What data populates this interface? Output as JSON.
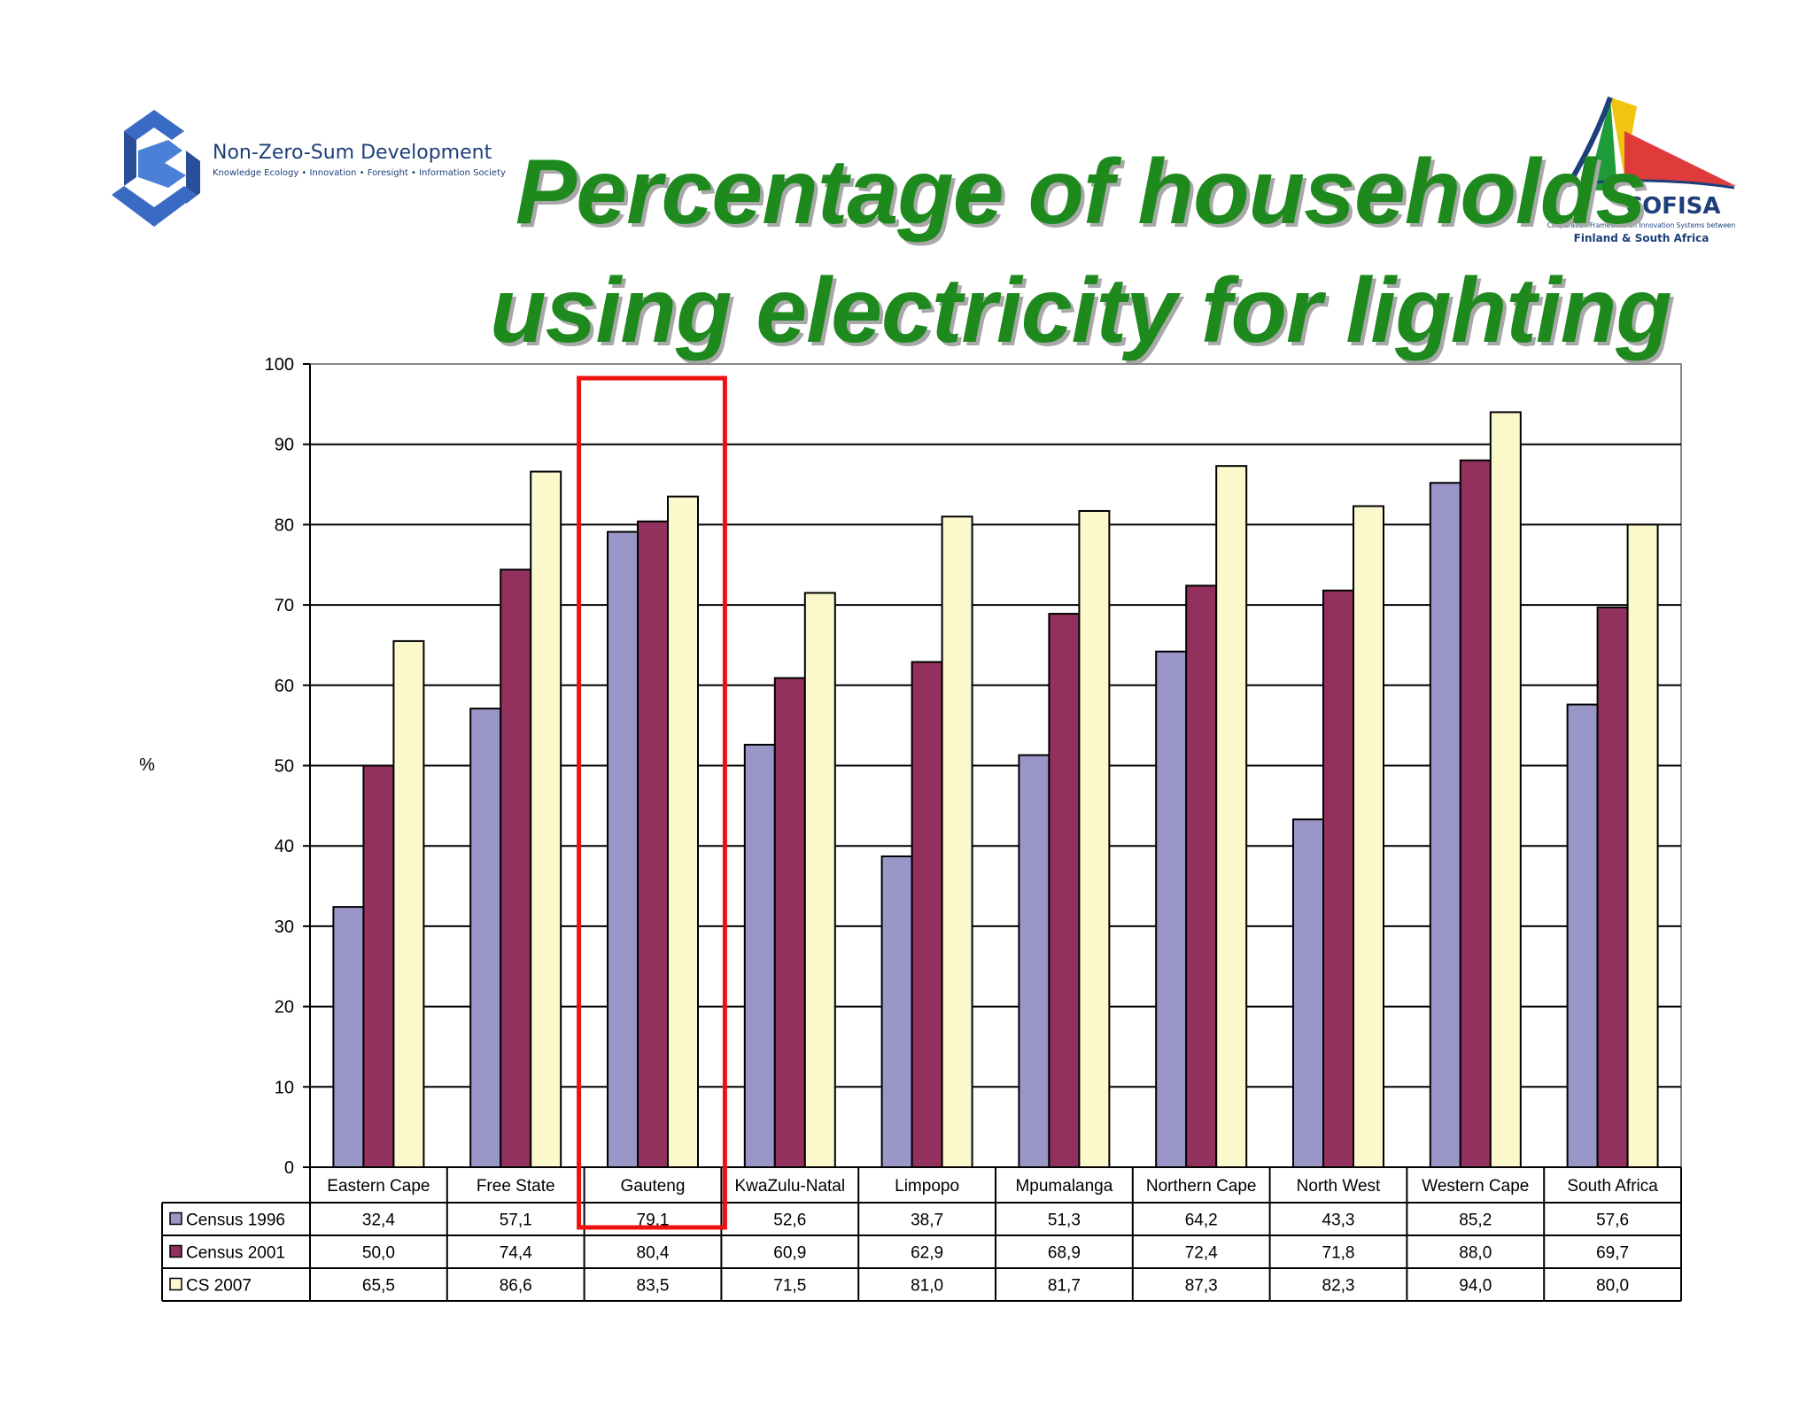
{
  "slide": {
    "title_line1": "Percentage of households",
    "title_line2": "using electricity for lighting"
  },
  "logo_left": {
    "name": "Non-Zero-Sum Development",
    "tagline": "Knowledge Ecology • Innovation • Foresight • Information Society"
  },
  "logo_right": {
    "name": "COFISA",
    "tagline": "Cooperation Framework on Innovation Systems between",
    "tagline2": "Finland & South Africa"
  },
  "colors": {
    "title": "#1e8a1e",
    "highlight": "#ee1111",
    "census1996": "#9a96c8",
    "census2001": "#92315e",
    "cs2007": "#fbf8cc"
  },
  "chart_data": {
    "type": "bar",
    "title": "",
    "xlabel": "",
    "ylabel": "%",
    "ylim": [
      0,
      100
    ],
    "yticks": [
      0,
      10,
      20,
      30,
      40,
      50,
      60,
      70,
      80,
      90,
      100
    ],
    "grid": true,
    "legend_placement": "data-table-left",
    "categories": [
      "Eastern Cape",
      "Free State",
      "Gauteng",
      "KwaZulu-Natal",
      "Limpopo",
      "Mpumalanga",
      "Northern Cape",
      "North West",
      "Western Cape",
      "South Africa"
    ],
    "series": [
      {
        "name": "Census 1996",
        "color": "#9a96c8",
        "values": [
          32.4,
          57.1,
          79.1,
          52.6,
          38.7,
          51.3,
          64.2,
          43.3,
          85.2,
          57.6
        ],
        "labels": [
          "32,4",
          "57,1",
          "79,1",
          "52,6",
          "38,7",
          "51,3",
          "64,2",
          "43,3",
          "85,2",
          "57,6"
        ]
      },
      {
        "name": "Census 2001",
        "color": "#92315e",
        "values": [
          50.0,
          74.4,
          80.4,
          60.9,
          62.9,
          68.9,
          72.4,
          71.8,
          88.0,
          69.7
        ],
        "labels": [
          "50,0",
          "74,4",
          "80,4",
          "60,9",
          "62,9",
          "68,9",
          "72,4",
          "71,8",
          "88,0",
          "69,7"
        ]
      },
      {
        "name": "CS 2007",
        "color": "#fbf8cc",
        "values": [
          65.5,
          86.6,
          83.5,
          71.5,
          81.0,
          81.7,
          87.3,
          82.3,
          94.0,
          80.0
        ],
        "labels": [
          "65,5",
          "86,6",
          "83,5",
          "71,5",
          "81,0",
          "81,7",
          "87,3",
          "82,3",
          "94,0",
          "80,0"
        ]
      }
    ],
    "highlighted_category": "Gauteng"
  }
}
